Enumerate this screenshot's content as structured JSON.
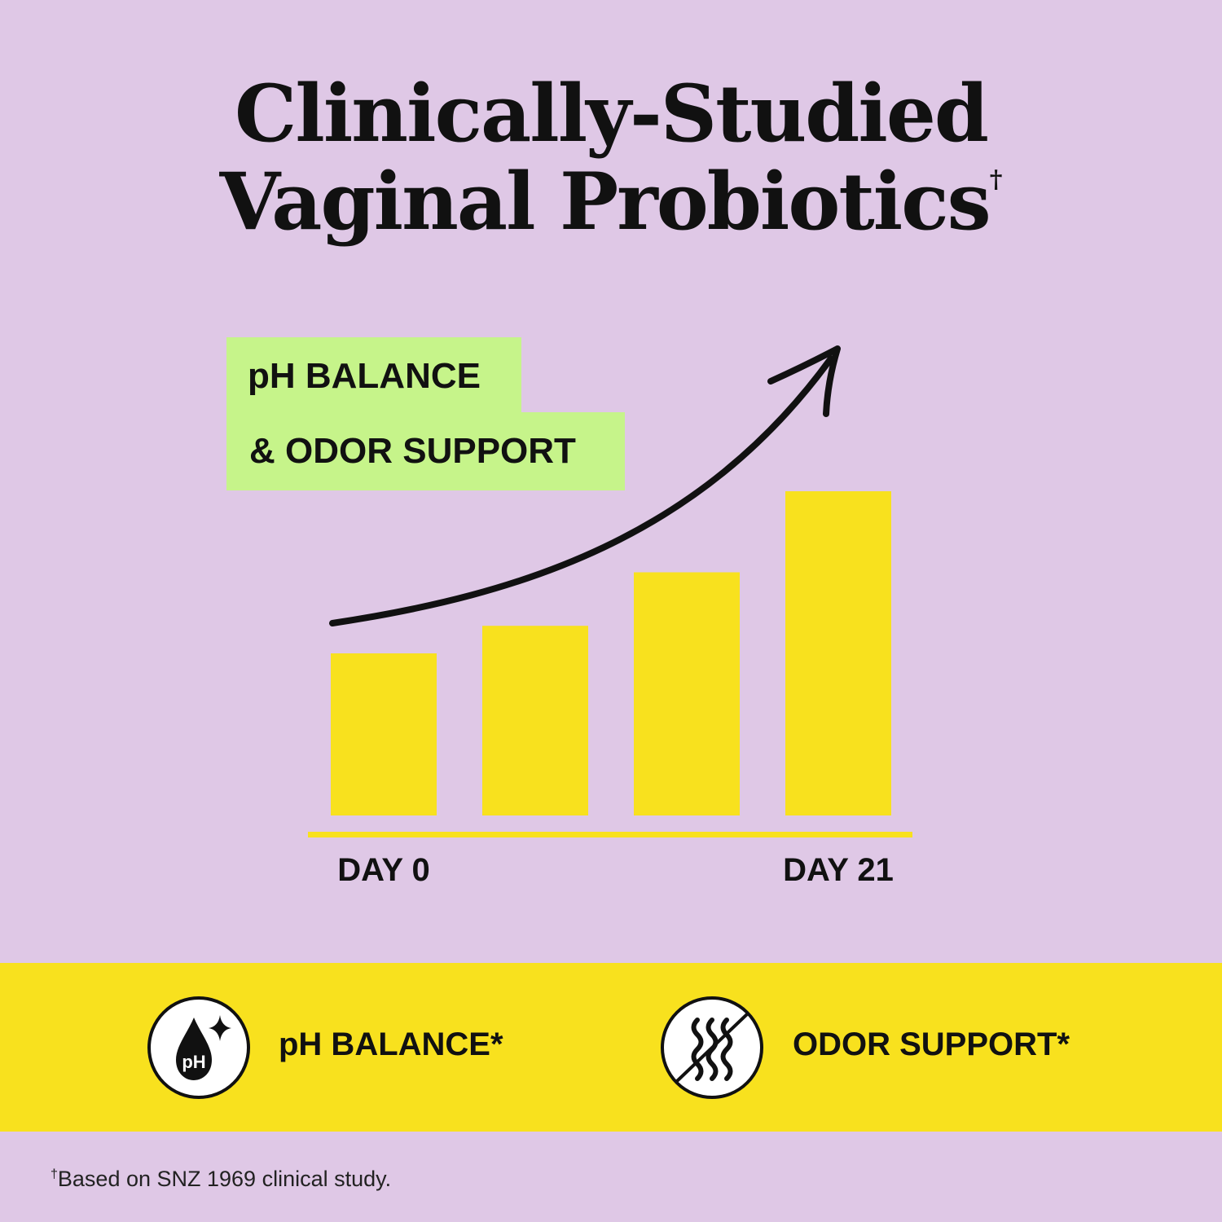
{
  "colors": {
    "background": "#dfc8e6",
    "bar": "#f8e11e",
    "tag": "#c6f48a",
    "band": "#f8e11e",
    "ink": "#111111"
  },
  "title": {
    "line1": "Clinically-Studied",
    "line2": "Vaginal Probiotics",
    "dagger": "†"
  },
  "tag": {
    "line1": "pH BALANCE",
    "line2": "& ODOR SUPPORT"
  },
  "chart_data": {
    "type": "bar",
    "categories": [
      "DAY 0",
      "",
      "",
      "DAY 21"
    ],
    "values": [
      1.0,
      1.17,
      1.5,
      2.0
    ],
    "trend_arrow": "increasing",
    "grid": false,
    "legend": "none"
  },
  "benefits": [
    {
      "label": "pH BALANCE*",
      "icon": "ph-drop-icon",
      "icon_text": "pH"
    },
    {
      "label": "ODOR SUPPORT*",
      "icon": "no-odor-icon"
    }
  ],
  "footnote": {
    "mark": "†",
    "text": "Based on SNZ 1969 clinical study."
  }
}
